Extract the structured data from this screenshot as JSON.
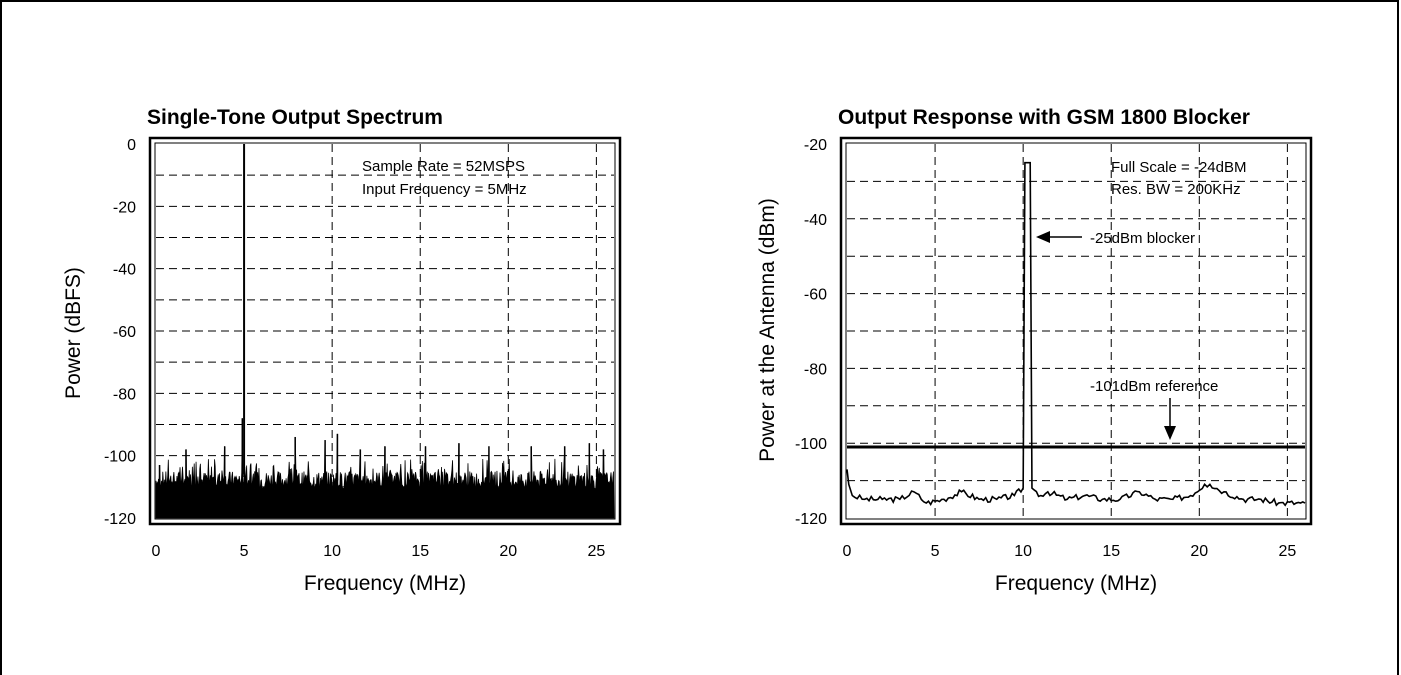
{
  "chart_data": [
    {
      "type": "line",
      "title": "Single-Tone Output Spectrum",
      "xlabel": "Frequency (MHz)",
      "ylabel": "Power (dBFS)",
      "xlim": [
        0,
        26
      ],
      "ylim": [
        -120,
        0
      ],
      "xticks": [
        0,
        5,
        10,
        15,
        20,
        25
      ],
      "yticks": [
        0,
        -20,
        -40,
        -60,
        -80,
        -100,
        -120
      ],
      "grid": true,
      "annotations": [
        "Sample Rate = 52MSPS",
        "Input Frequency = 5MHz"
      ],
      "series": [
        {
          "noise_floor_dBFS": -108,
          "points": [
            {
              "x": 5.0,
              "y": 0
            },
            {
              "x": 0.2,
              "y": -103
            },
            {
              "x": 1.7,
              "y": -98
            },
            {
              "x": 3.9,
              "y": -97
            },
            {
              "x": 4.9,
              "y": -88
            },
            {
              "x": 7.9,
              "y": -94
            },
            {
              "x": 9.6,
              "y": -95
            },
            {
              "x": 10.3,
              "y": -93
            },
            {
              "x": 11.6,
              "y": -98
            },
            {
              "x": 13.0,
              "y": -97
            },
            {
              "x": 15.3,
              "y": -97
            },
            {
              "x": 17.2,
              "y": -96
            },
            {
              "x": 18.9,
              "y": -97
            },
            {
              "x": 21.3,
              "y": -97
            },
            {
              "x": 23.2,
              "y": -97
            },
            {
              "x": 24.6,
              "y": -96
            },
            {
              "x": 25.4,
              "y": -98
            }
          ]
        }
      ]
    },
    {
      "type": "line",
      "title": "Output Response with GSM 1800 Blocker",
      "xlabel": "Frequency (MHz)",
      "ylabel": "Power at the Antenna (dBm)",
      "xlim": [
        0,
        26
      ],
      "ylim": [
        -120,
        -20
      ],
      "xticks": [
        0,
        5,
        10,
        15,
        20,
        25
      ],
      "yticks": [
        -20,
        -40,
        -60,
        -80,
        -100,
        -120
      ],
      "grid": true,
      "annotations": [
        "Full Scale = -24dBM",
        "Res. BW = 200KHz",
        "-25dBm blocker",
        "-101dBm reference"
      ],
      "reference_level": -101,
      "series": [
        {
          "points": [
            {
              "x": 0.0,
              "y": -107
            },
            {
              "x": 0.1,
              "y": -111
            },
            {
              "x": 0.3,
              "y": -114
            },
            {
              "x": 1.0,
              "y": -115
            },
            {
              "x": 2.0,
              "y": -115
            },
            {
              "x": 3.0,
              "y": -115
            },
            {
              "x": 3.8,
              "y": -113
            },
            {
              "x": 4.5,
              "y": -116
            },
            {
              "x": 5.5,
              "y": -115
            },
            {
              "x": 6.5,
              "y": -113
            },
            {
              "x": 7.5,
              "y": -115
            },
            {
              "x": 8.5,
              "y": -115
            },
            {
              "x": 9.5,
              "y": -114
            },
            {
              "x": 10.0,
              "y": -112
            },
            {
              "x": 10.1,
              "y": -25
            },
            {
              "x": 10.4,
              "y": -25
            },
            {
              "x": 10.5,
              "y": -112
            },
            {
              "x": 11.0,
              "y": -114
            },
            {
              "x": 11.4,
              "y": -113
            },
            {
              "x": 12.5,
              "y": -115
            },
            {
              "x": 13.5,
              "y": -114
            },
            {
              "x": 14.5,
              "y": -115
            },
            {
              "x": 15.5,
              "y": -115
            },
            {
              "x": 16.6,
              "y": -113
            },
            {
              "x": 17.5,
              "y": -115
            },
            {
              "x": 18.5,
              "y": -115
            },
            {
              "x": 19.5,
              "y": -114
            },
            {
              "x": 20.3,
              "y": -111
            },
            {
              "x": 20.6,
              "y": -111
            },
            {
              "x": 21.4,
              "y": -113
            },
            {
              "x": 22.5,
              "y": -115
            },
            {
              "x": 23.5,
              "y": -115
            },
            {
              "x": 24.5,
              "y": -116
            },
            {
              "x": 25.5,
              "y": -116
            },
            {
              "x": 26.0,
              "y": -116
            }
          ]
        }
      ]
    }
  ]
}
